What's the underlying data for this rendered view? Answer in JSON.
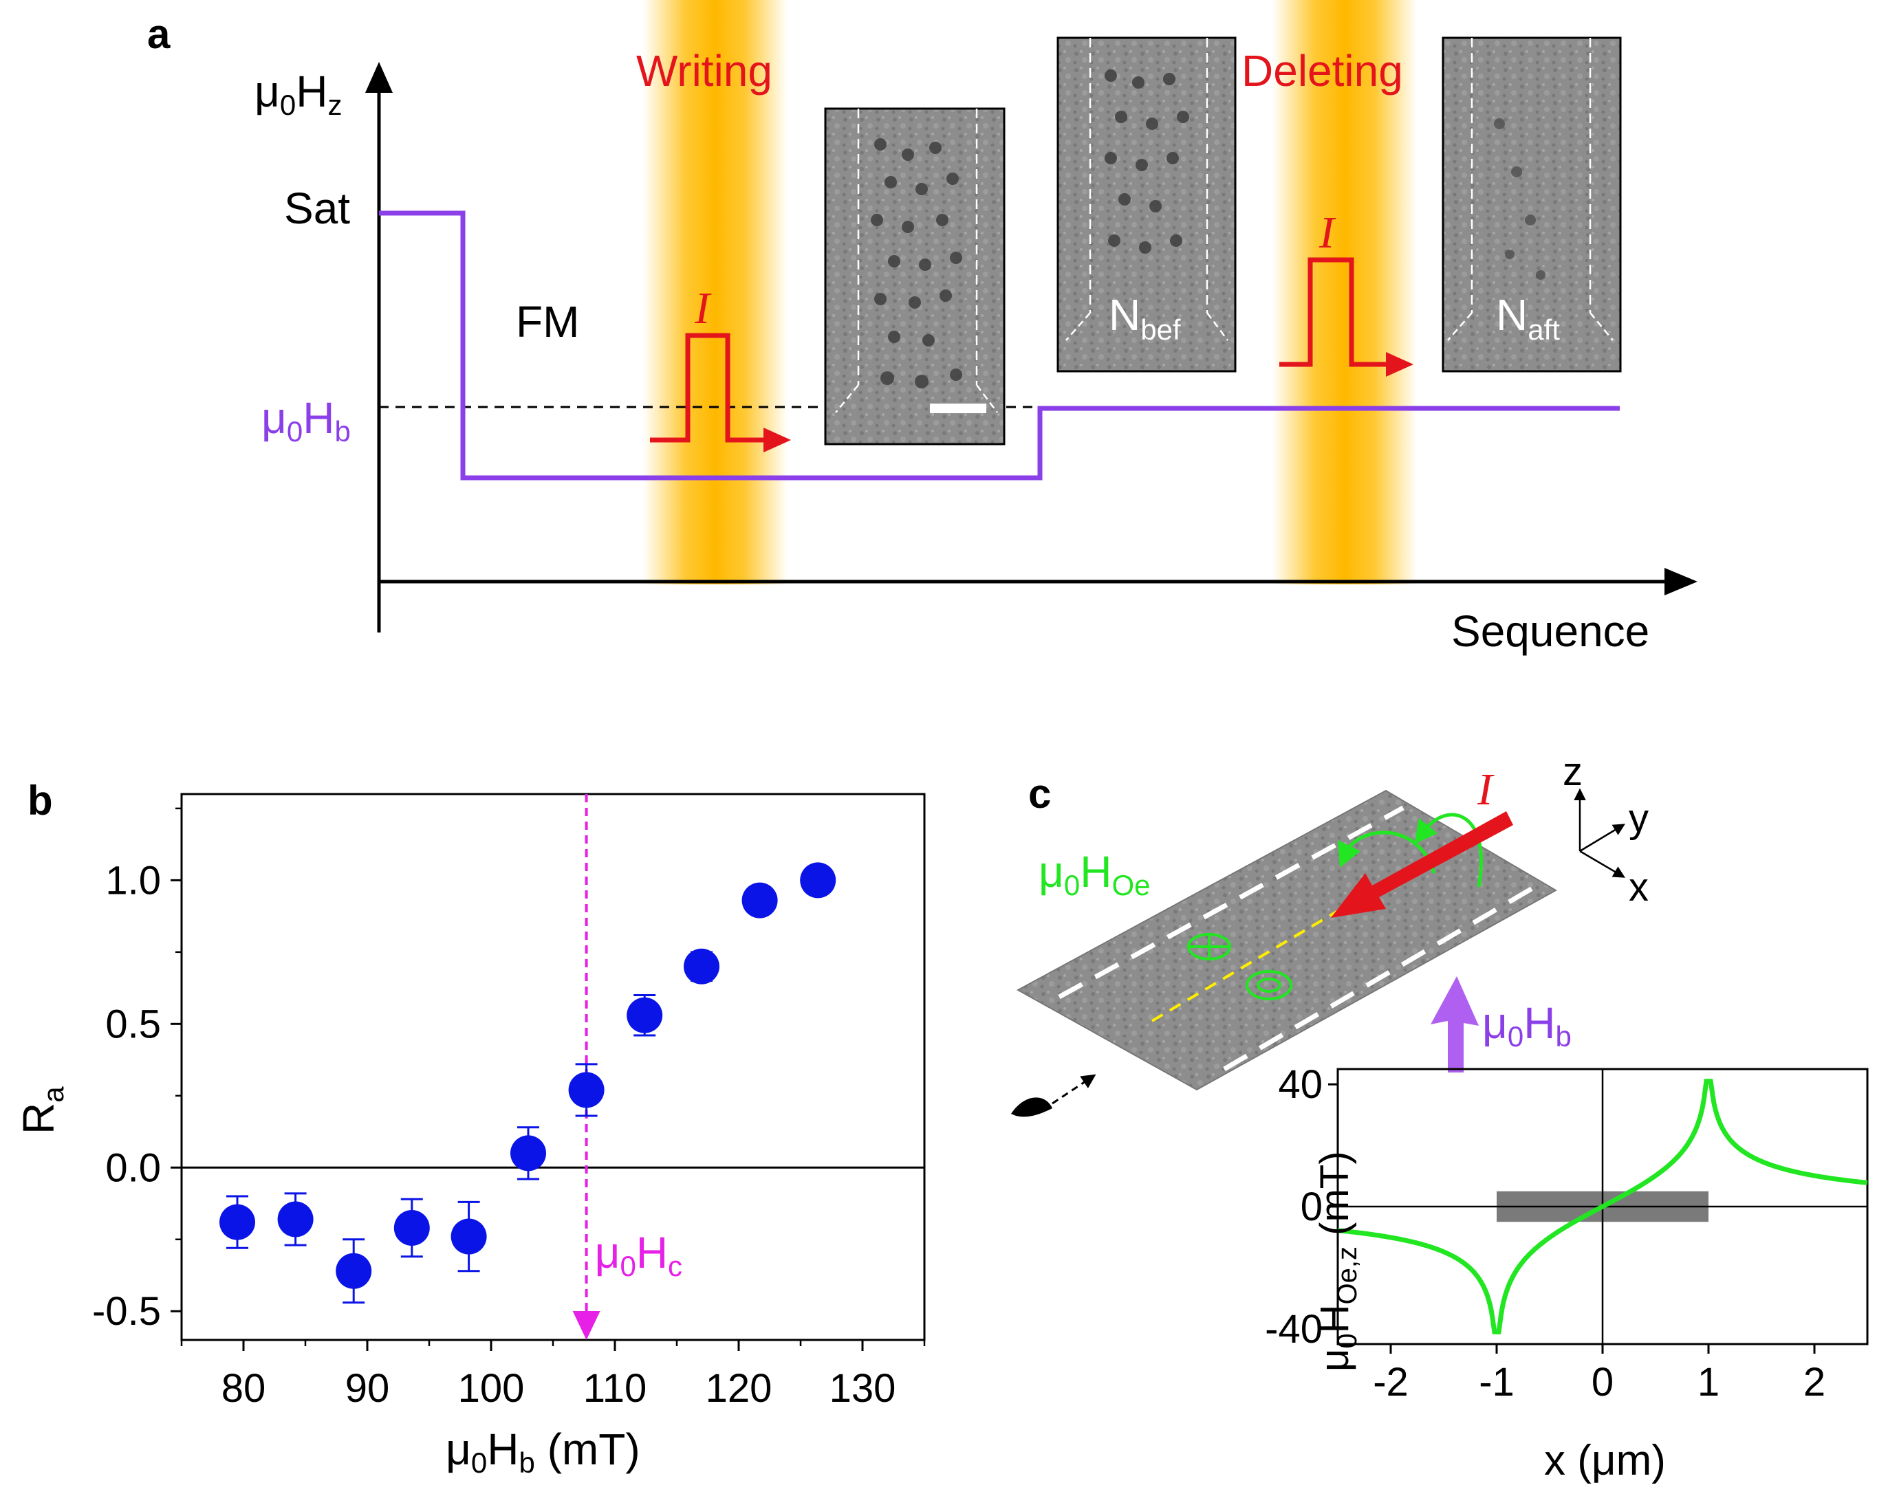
{
  "panel_a": {
    "label": "a",
    "y_axis_label": "μ0Hz",
    "x_axis_label": "Sequence",
    "sat_label": "Sat",
    "fm_label": "FM",
    "hb_label": "μ0Hb",
    "writing_label": "Writing",
    "deleting_label": "Deleting",
    "current_label": "I",
    "nbef_label": "Nbef",
    "naft_label": "Naft",
    "colors": {
      "field": "#8b3fe8",
      "pulse": "#e3141b",
      "band": "#ffc21a"
    }
  },
  "chart_data": [
    {
      "id": "panel_b",
      "type": "scatter",
      "panel_label": "b",
      "xlabel": "μ0Hb (mT)",
      "ylabel": "Ra",
      "xlim": [
        75,
        135
      ],
      "ylim": [
        -0.6,
        1.3
      ],
      "xticks": [
        80,
        90,
        100,
        110,
        120,
        130
      ],
      "yticks": [
        -0.5,
        0.0,
        0.5,
        1.0
      ],
      "xtick_labels": [
        "80",
        "90",
        "100",
        "110",
        "120",
        "130"
      ],
      "ytick_labels": [
        "-0.5",
        "0.0",
        "0.5",
        "1.0"
      ],
      "x": [
        79.5,
        84.2,
        88.9,
        93.6,
        98.2,
        103.0,
        107.7,
        112.4,
        117.0,
        121.7,
        126.4
      ],
      "y": [
        -0.19,
        -0.18,
        -0.36,
        -0.21,
        -0.24,
        0.05,
        0.27,
        0.53,
        0.7,
        0.93,
        1.0
      ],
      "yerr": [
        0.09,
        0.09,
        0.11,
        0.1,
        0.12,
        0.09,
        0.09,
        0.07,
        0.05,
        0.03,
        0.0
      ],
      "hc_value": 107.7,
      "hc_label": "μ0Hc",
      "colors": {
        "point": "#0a14e6",
        "hc": "#e620e6"
      }
    },
    {
      "id": "panel_c_inset",
      "type": "line",
      "panel_label": "c",
      "xlabel": "x (μm)",
      "ylabel": "μ0HOe,z (mT)",
      "xlim": [
        -2.5,
        2.5
      ],
      "ylim": [
        -45,
        45
      ],
      "xticks": [
        -2,
        -1,
        0,
        1,
        2
      ],
      "yticks": [
        -40,
        0,
        40
      ],
      "xtick_labels": [
        "-2",
        "-1",
        "0",
        "1",
        "2"
      ],
      "ytick_labels": [
        "-40",
        "0",
        "40"
      ],
      "strip_range": [
        -1,
        1
      ],
      "colors": {
        "line": "#22e622",
        "strip": "#7a7a7a"
      }
    }
  ],
  "panel_c": {
    "label": "c",
    "hoe_label": "μ0HOe",
    "current_label": "I",
    "hb_label": "μ0Hb",
    "axis_z": "z",
    "axis_y": "y",
    "axis_x": "x"
  }
}
